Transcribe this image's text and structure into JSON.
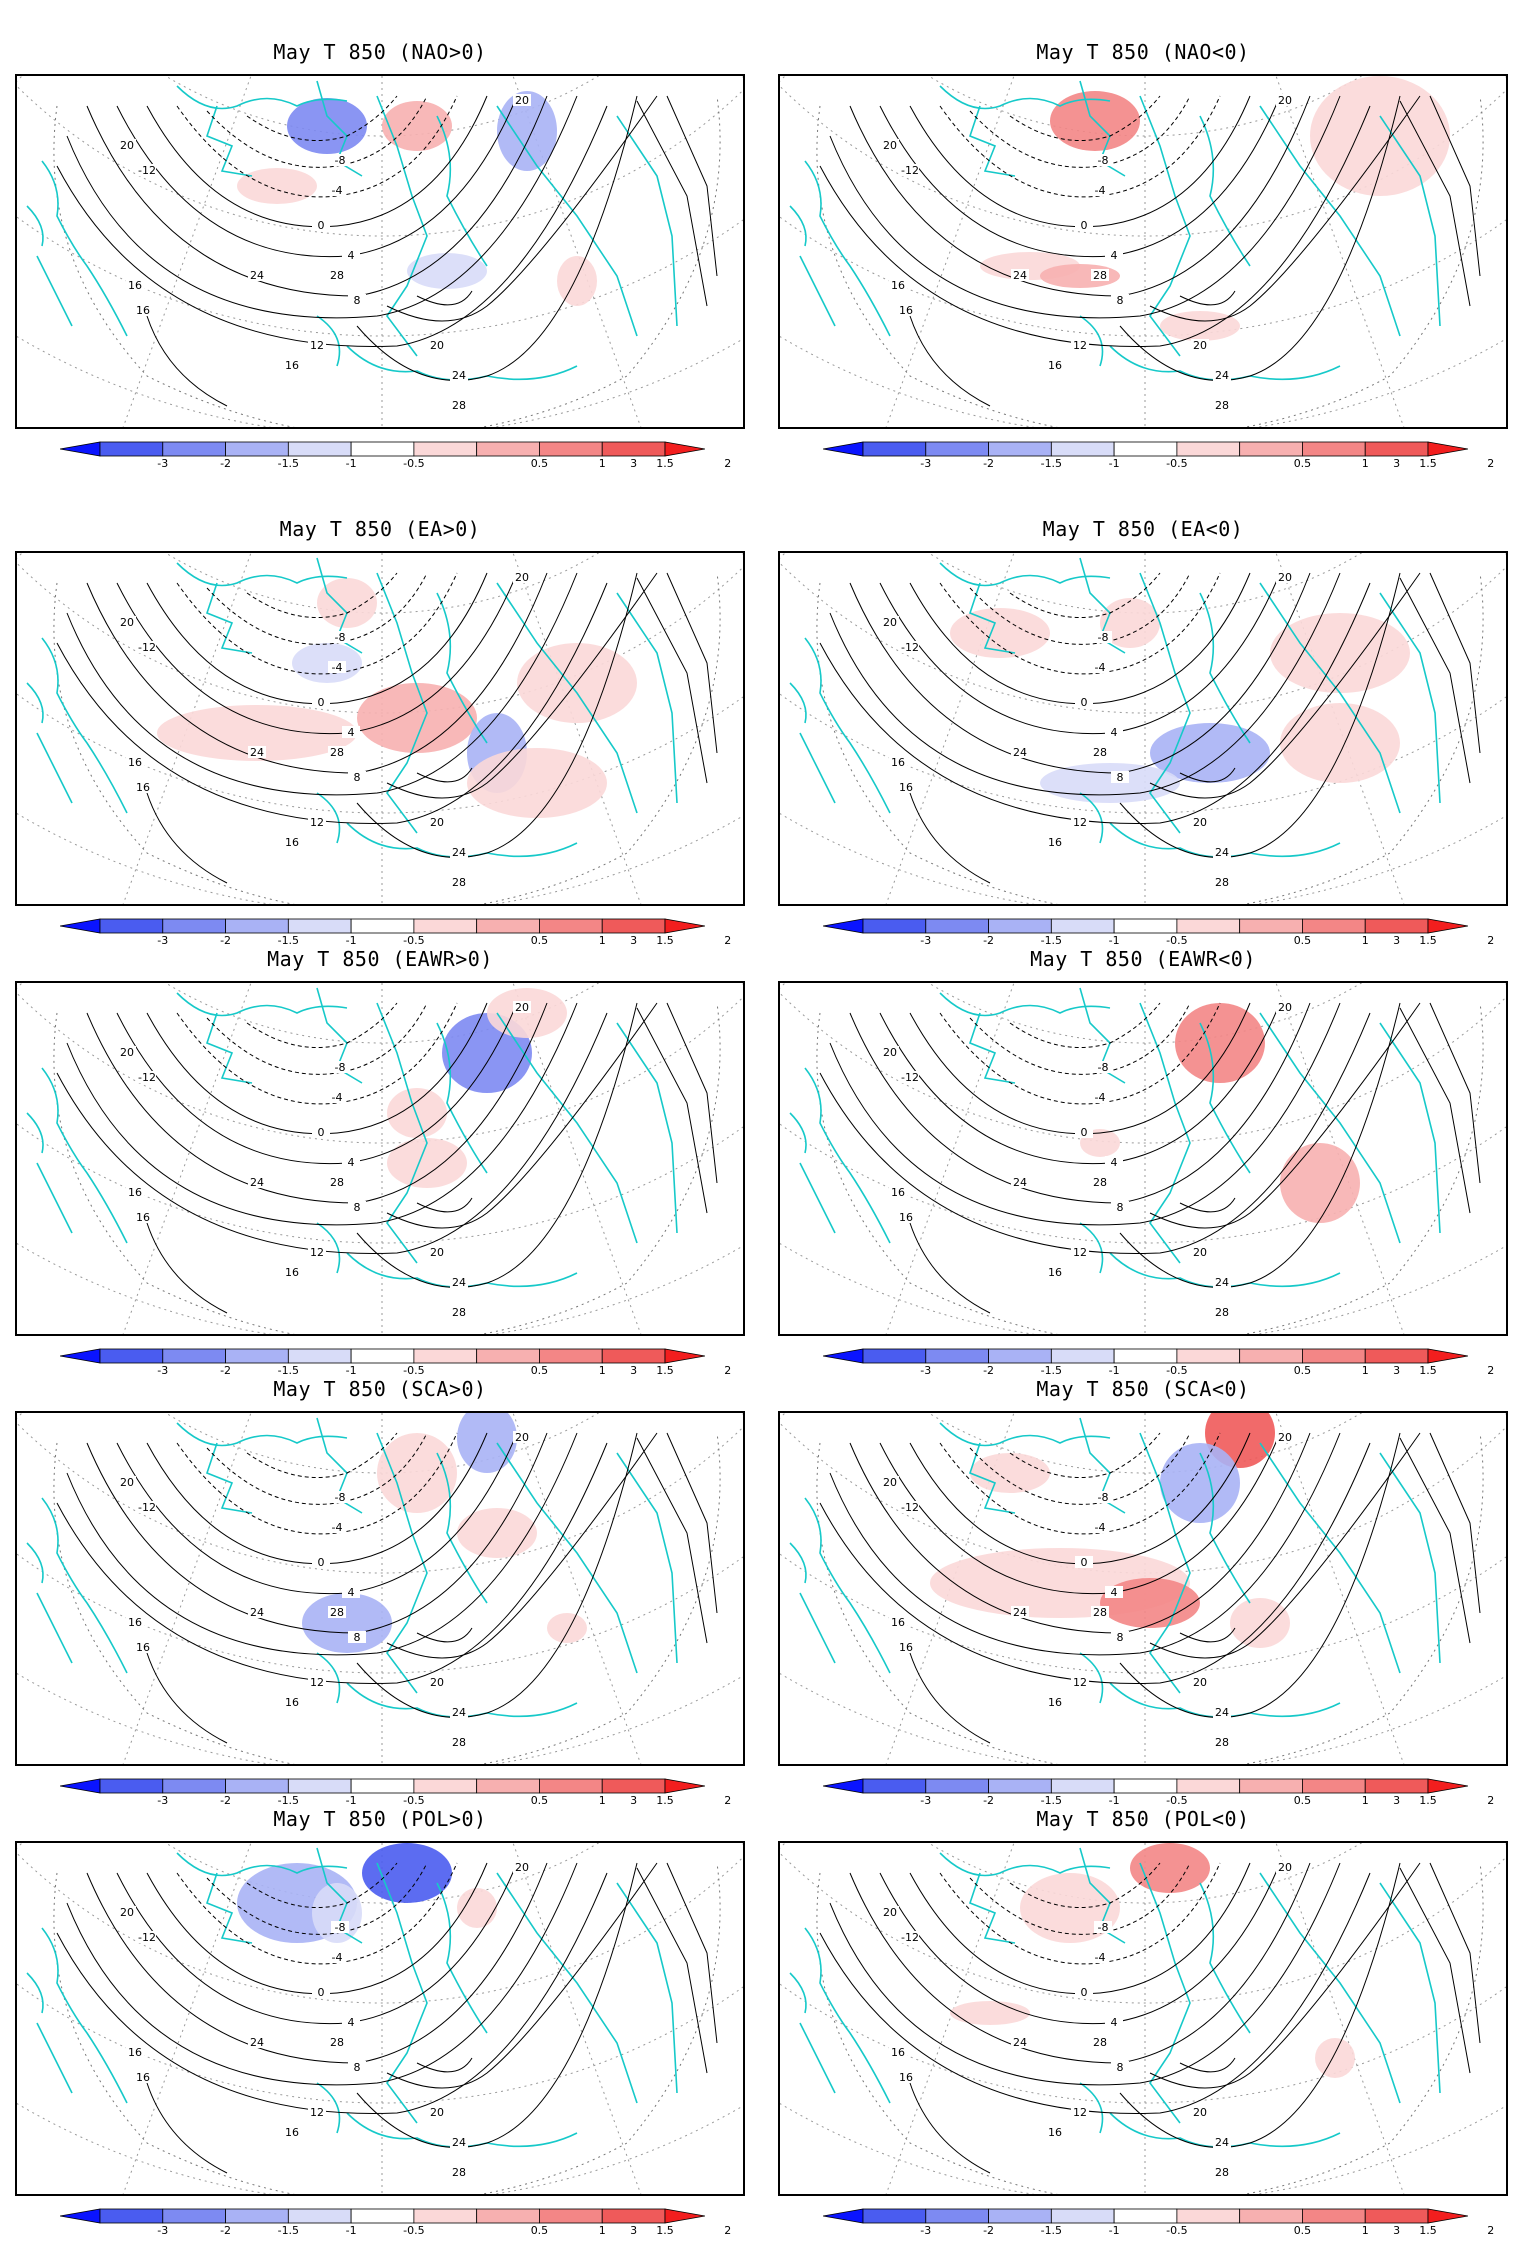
{
  "panels": [
    {
      "title": "May T 850  (NAO>0)"
    },
    {
      "title": "May T 850  (NAO<0)"
    },
    {
      "title": "May T 850  (EA>0)"
    },
    {
      "title": "May T 850  (EA<0)"
    },
    {
      "title": "May T 850  (EAWR>0)"
    },
    {
      "title": "May T 850  (EAWR<0)"
    },
    {
      "title": "May T 850  (SCA>0)"
    },
    {
      "title": "May T 850  (SCA<0)"
    },
    {
      "title": "May T 850  (POL>0)"
    },
    {
      "title": "May T 850  (POL<0)"
    }
  ],
  "contour_labels": [
    "-12",
    "-8",
    "-4",
    "0",
    "4",
    "8",
    "12",
    "16",
    "20",
    "24",
    "28",
    "16",
    "16",
    "20",
    "24",
    "28",
    "20"
  ],
  "colorbar": {
    "ticks": [
      "-3",
      "-2",
      "-1.5",
      "-1",
      "-0.5",
      "0.5",
      "1",
      "1.5",
      "2",
      "3"
    ],
    "colors": [
      "#0a14ff",
      "#4a5cf0",
      "#7d8af2",
      "#a9b2f5",
      "#d8dcf8",
      "#ffffff",
      "#fbd8d8",
      "#f7b0b0",
      "#f38686",
      "#ef5a5a",
      "#f21e1e"
    ]
  },
  "colors": {
    "coast": "#16c9c9",
    "contour": "#000000",
    "grid": "#9a9a9a"
  }
}
